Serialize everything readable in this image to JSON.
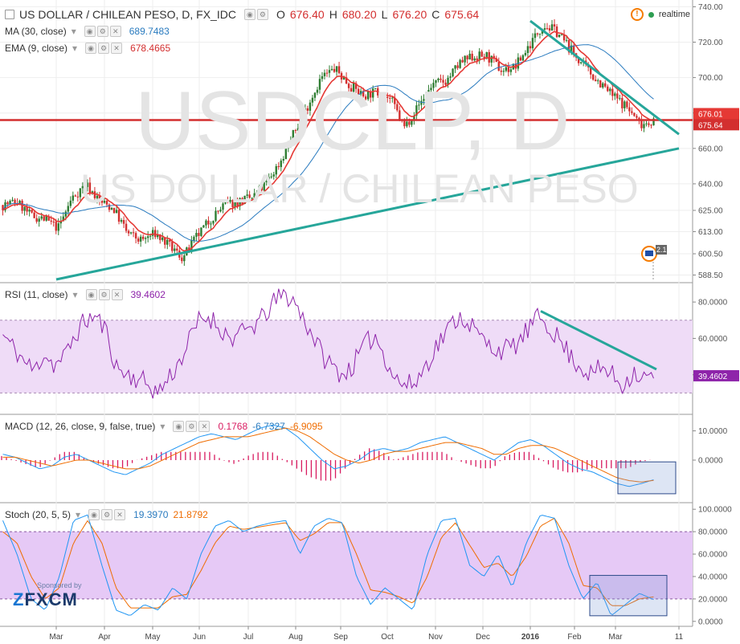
{
  "header": {
    "symbol": "US DOLLAR / CHILEAN PESO, D, FX_IDC",
    "o_label": "O",
    "o": "676.40",
    "h_label": "H",
    "h": "680.20",
    "l_label": "L",
    "l": "676.20",
    "c_label": "C",
    "c": "675.64",
    "realtime": "realtime"
  },
  "indicators": {
    "ma": {
      "label": "MA (30, close)",
      "value": "689.7483"
    },
    "ema": {
      "label": "EMA (9, close)",
      "value": "678.4665"
    },
    "rsi": {
      "label": "RSI (11, close)",
      "value": "39.4602"
    },
    "macd": {
      "label": "MACD (12, 26, close, 9, false, true)",
      "hist": "0.1768",
      "macd": "-6.7327",
      "signal": "-6.9095"
    },
    "stoch": {
      "label": "Stoch (20, 5, 5)",
      "k": "19.3970",
      "d": "21.8792"
    }
  },
  "watermark": {
    "big": "USDCLP, D",
    "sub": "US DOLLAR / CHILEAN PESO"
  },
  "logo": {
    "sponsored": "Sponsored by",
    "brand": "FXCM"
  },
  "flag_badge": "2.1",
  "colors": {
    "bull": "#2e7d32",
    "bear": "#d32f2f",
    "ma": "#2a7bbf",
    "ema": "#e53935",
    "rsi": "#8e24aa",
    "trend": "#26a69a",
    "macd": "#2196f3",
    "signal": "#ef6c00",
    "hist": "#d81b60",
    "stoch_k": "#2196f3",
    "stoch_d": "#ef6c00",
    "band": "#efdcf7"
  },
  "chart_data": [
    {
      "type": "candlestick",
      "title": "US DOLLAR / CHILEAN PESO, D, FX_IDC",
      "y_ticks": [
        740.0,
        720.0,
        700.0,
        680.0,
        660.0,
        640.0,
        625.0,
        613.0,
        600.5,
        588.5
      ],
      "ylim": [
        586,
        742
      ],
      "x_ticks": [
        "Mar",
        "Apr",
        "May",
        "Jun",
        "Jul",
        "Aug",
        "Sep",
        "Oct",
        "Nov",
        "Dec",
        "2016",
        "Feb",
        "Mar",
        "11"
      ],
      "price_path": [
        628,
        630,
        622,
        620,
        615,
        632,
        640,
        630,
        626,
        612,
        608,
        612,
        605,
        598,
        610,
        620,
        628,
        630,
        632,
        640,
        652,
        668,
        684,
        700,
        705,
        696,
        690,
        692,
        688,
        672,
        684,
        696,
        698,
        708,
        712,
        712,
        704,
        706,
        718,
        730,
        726,
        716,
        706,
        698,
        690,
        684,
        674,
        675.64
      ],
      "horizontal_line": 676.0,
      "price_labels": [
        "676.01",
        "675.64"
      ],
      "trendlines": [
        {
          "name": "support",
          "from": [
            "Mar",
            586
          ],
          "to": [
            "11",
            660
          ]
        },
        {
          "name": "resistance",
          "from": [
            "2016",
            732
          ],
          "to": [
            "11",
            668
          ]
        }
      ]
    },
    {
      "type": "line",
      "title": "RSI (11, close)",
      "y_ticks": [
        80.0,
        60.0,
        40.0
      ],
      "ylim": [
        20,
        88
      ],
      "band": [
        30,
        70
      ],
      "values": [
        62,
        55,
        48,
        42,
        52,
        45,
        50,
        62,
        70,
        72,
        64,
        44,
        40,
        38,
        35,
        30,
        38,
        46,
        58,
        70,
        72,
        66,
        60,
        62,
        66,
        70,
        78,
        84,
        82,
        72,
        62,
        50,
        44,
        40,
        46,
        56,
        62,
        50,
        38,
        34,
        36,
        46,
        56,
        64,
        72,
        70,
        62,
        56,
        54,
        54,
        58,
        66,
        72,
        66,
        58,
        50,
        44,
        40,
        44,
        40,
        34,
        42,
        38,
        39.46
      ]
    },
    {
      "type": "line",
      "title": "MACD (12, 26, close, 9, false, true)",
      "y_ticks": [
        10.0,
        0.0
      ],
      "ylim": [
        -14,
        14
      ],
      "series": [
        {
          "values": [
            2,
            1,
            -1,
            -3,
            -2,
            1,
            2,
            0,
            -2,
            -4,
            -5,
            -3,
            -1,
            2,
            4,
            6,
            8,
            9,
            8,
            7,
            9,
            11,
            12,
            11,
            8,
            4,
            0,
            -3,
            -2,
            0,
            3,
            4,
            3,
            4,
            6,
            7,
            8,
            6,
            4,
            2,
            0,
            3,
            6,
            7,
            5,
            2,
            -1,
            -3,
            -4,
            -6,
            -8,
            -9,
            -8,
            -6.73
          ]
        },
        {
          "values": [
            1,
            1,
            0,
            -1,
            -2,
            -1,
            0,
            0,
            -1,
            -2,
            -3,
            -3,
            -2,
            0,
            2,
            4,
            6,
            7,
            8,
            8,
            8,
            9,
            10,
            11,
            10,
            8,
            5,
            2,
            0,
            -1,
            0,
            2,
            3,
            3,
            4,
            5,
            6,
            6,
            5,
            4,
            2,
            2,
            4,
            5,
            5,
            4,
            2,
            0,
            -2,
            -4,
            -6,
            -7,
            -7.5,
            -6.91
          ]
        }
      ]
    },
    {
      "type": "line",
      "title": "Stoch (20, 5, 5)",
      "y_ticks": [
        100.0,
        80.0,
        60.0,
        40.0,
        20.0,
        0.0
      ],
      "ylim": [
        -3,
        103
      ],
      "band": [
        20,
        80
      ],
      "series": [
        {
          "values": [
            90,
            60,
            20,
            10,
            40,
            90,
            95,
            50,
            10,
            5,
            15,
            10,
            30,
            20,
            60,
            85,
            90,
            80,
            85,
            88,
            90,
            60,
            85,
            92,
            88,
            40,
            15,
            30,
            20,
            10,
            60,
            90,
            92,
            50,
            40,
            60,
            30,
            70,
            95,
            92,
            50,
            20,
            35,
            5,
            15,
            25,
            19.4
          ]
        },
        {
          "values": [
            80,
            70,
            40,
            20,
            30,
            70,
            90,
            70,
            30,
            12,
            12,
            12,
            22,
            24,
            45,
            70,
            85,
            82,
            84,
            86,
            88,
            72,
            78,
            88,
            88,
            60,
            28,
            26,
            22,
            16,
            40,
            75,
            88,
            68,
            48,
            52,
            40,
            58,
            85,
            92,
            70,
            32,
            30,
            14,
            14,
            20,
            21.9
          ]
        }
      ]
    }
  ]
}
